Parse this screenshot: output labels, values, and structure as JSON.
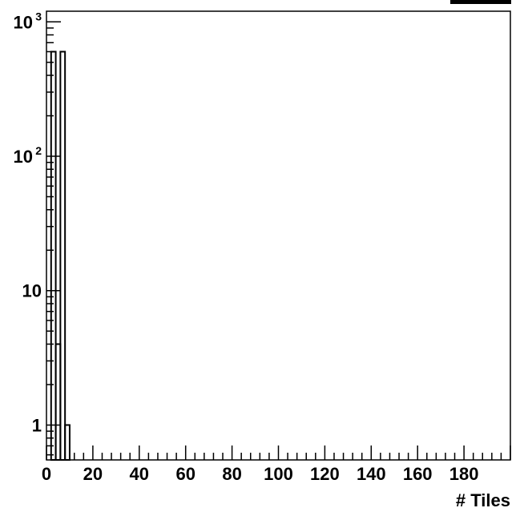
{
  "chart_data": {
    "type": "bar",
    "histogram": true,
    "xlabel": "# Tiles",
    "ylabel": "",
    "title": "",
    "xlim": [
      0,
      200
    ],
    "ylim": [
      0.55,
      1200
    ],
    "y_scale": "log",
    "bin_width": 2,
    "bins": [
      {
        "x0": 2,
        "x1": 4,
        "value": 600
      },
      {
        "x0": 4,
        "x1": 6,
        "value": 4
      },
      {
        "x0": 6,
        "x1": 8,
        "value": 600
      },
      {
        "x0": 8,
        "x1": 10,
        "value": 1
      }
    ],
    "x_tick_labels": [
      "0",
      "20",
      "40",
      "60",
      "80",
      "100",
      "120",
      "140",
      "160",
      "180"
    ],
    "y_tick_labels": [
      {
        "value": 1,
        "base": "1",
        "exp": ""
      },
      {
        "value": 10,
        "base": "10",
        "exp": ""
      },
      {
        "value": 100,
        "base": "10",
        "exp": "2"
      },
      {
        "value": 1000,
        "base": "10",
        "exp": "3"
      }
    ],
    "grid": false,
    "legend": "none"
  }
}
